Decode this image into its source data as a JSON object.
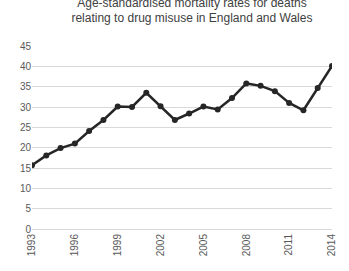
{
  "chart_data": {
    "type": "line",
    "title": "Age-standardised mortality rates for deaths\nrelating to drug misuse in England and Wales",
    "x": [
      1993,
      1994,
      1995,
      1996,
      1997,
      1998,
      1999,
      2000,
      2001,
      2002,
      2003,
      2004,
      2005,
      2006,
      2007,
      2008,
      2009,
      2010,
      2011,
      2012,
      2013,
      2014
    ],
    "values": [
      15.7,
      18.1,
      19.9,
      21.0,
      24.1,
      26.8,
      30.1,
      30.0,
      33.5,
      30.2,
      26.8,
      28.4,
      30.1,
      29.4,
      32.2,
      35.8,
      35.2,
      33.9,
      31.0,
      29.2,
      34.7,
      40.1
    ],
    "color": "#262626",
    "marker": "circle",
    "line_style": "solid",
    "xlim": [
      1993,
      2014
    ],
    "xticks": [
      1993,
      1996,
      1999,
      2002,
      2005,
      2008,
      2011,
      2014
    ],
    "ylim": [
      0,
      45
    ],
    "yticks": [
      0,
      5,
      10,
      15,
      20,
      25,
      30,
      35,
      40,
      45
    ],
    "grid": true
  }
}
